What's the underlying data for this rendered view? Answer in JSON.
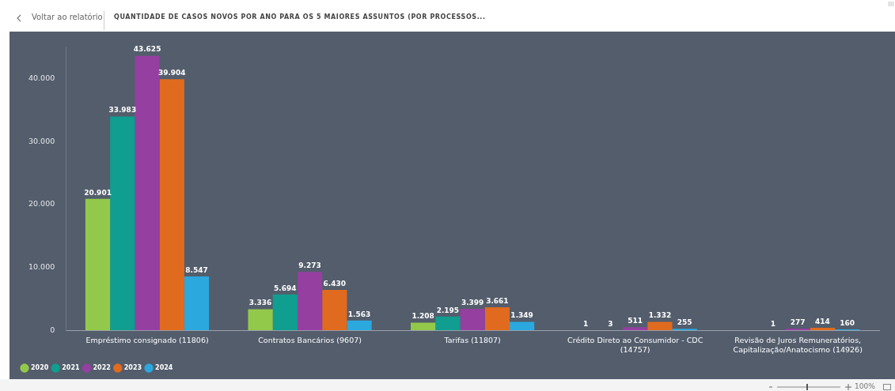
{
  "chart_data": {
    "type": "bar",
    "title": "QUANTIDADE DE CASOS NOVOS POR ANO PARA OS 5 MAIORES ASSUNTOS (POR PROCESSOS...",
    "annotations": [
      "Voltar ao relatório",
      "100%"
    ],
    "categories": [
      "Empréstimo consignado (11806)",
      "Contratos Bancários (9607)",
      "Tarifas (11807)",
      "Crédito Direto ao Consumidor - CDC (14757)",
      "Revisão de Juros Remuneratórios, Capitalização/Anatocismo (14926)"
    ],
    "series": [
      {
        "name": "2020",
        "color": "#93c94b",
        "values": [
          20901,
          3336,
          1208,
          1,
          null
        ],
        "value_labels": [
          "20.901",
          "3.336",
          "1.208",
          "1",
          null
        ]
      },
      {
        "name": "2021",
        "color": "#0f9e8f",
        "values": [
          33983,
          5694,
          2195,
          3,
          1
        ],
        "value_labels": [
          "33.983",
          "5.694",
          "2.195",
          "3",
          "1"
        ]
      },
      {
        "name": "2022",
        "color": "#953fa1",
        "values": [
          43625,
          9273,
          3399,
          511,
          277
        ],
        "value_labels": [
          "43.625",
          "9.273",
          "3.399",
          "511",
          "277"
        ]
      },
      {
        "name": "2023",
        "color": "#e06b1f",
        "values": [
          39904,
          6430,
          3661,
          1332,
          414
        ],
        "value_labels": [
          "39.904",
          "6.430",
          "3.661",
          "1.332",
          "414"
        ]
      },
      {
        "name": "2024",
        "color": "#2ba8de",
        "values": [
          8547,
          1563,
          1349,
          255,
          160
        ],
        "value_labels": [
          "8.547",
          "1.563",
          "1.349",
          "255",
          "160"
        ]
      }
    ],
    "ylim": [
      0,
      45000
    ],
    "yticks": [
      {
        "value": 0,
        "label": "0"
      },
      {
        "value": 10000,
        "label": "10.000"
      },
      {
        "value": 20000,
        "label": "20.000"
      },
      {
        "value": 30000,
        "label": "30.000"
      },
      {
        "value": 40000,
        "label": "40.000"
      }
    ],
    "grid": false,
    "legend": "bottom left"
  }
}
